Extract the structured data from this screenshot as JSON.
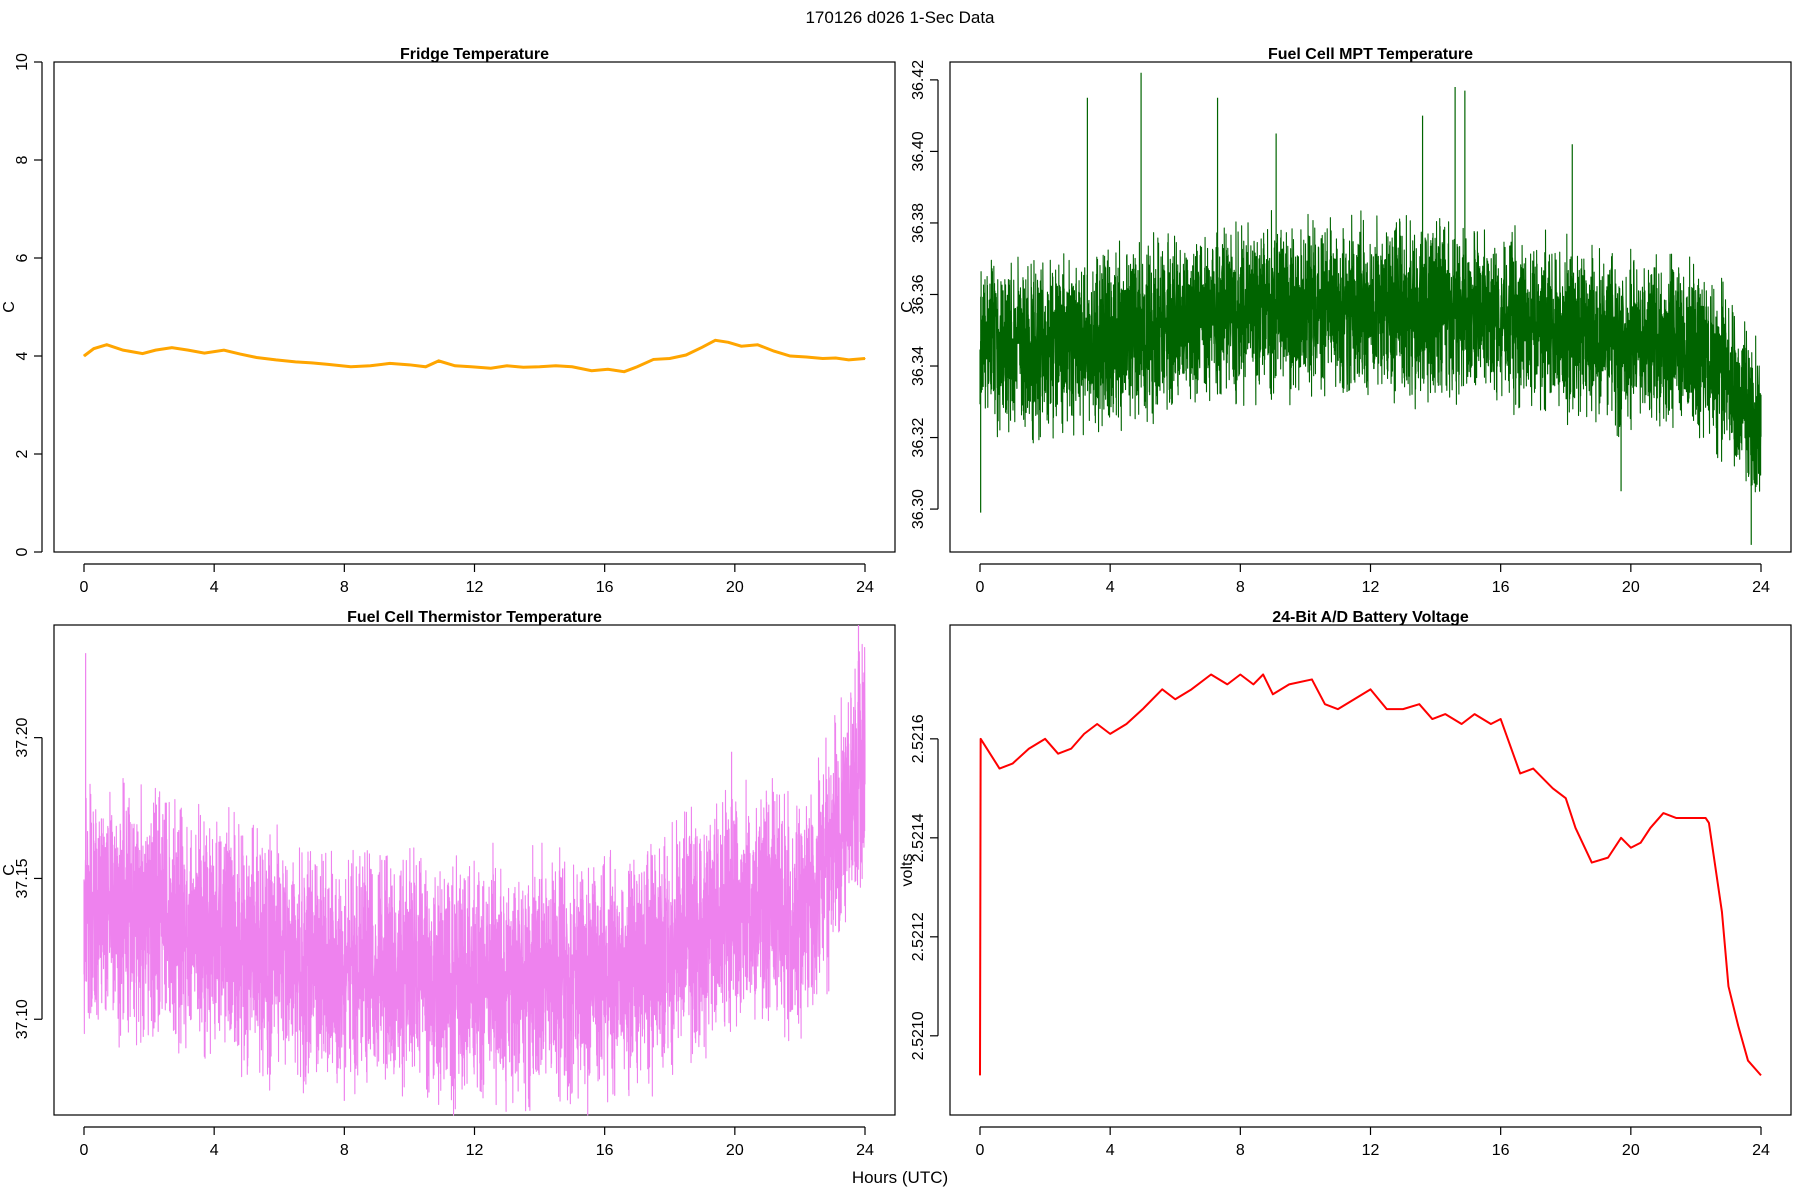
{
  "figure": {
    "header": "170126   d026   1-Sec Data",
    "xlabel": "Hours (UTC)"
  },
  "colors": {
    "fridge": "#FFA500",
    "mpt": "#006400",
    "thermistor": "#EE82EE",
    "battery": "#FF0000"
  },
  "chart_data": [
    {
      "id": "fridge",
      "type": "line",
      "title": "Fridge Temperature",
      "xlabel": "",
      "ylabel": "C",
      "xlim": [
        0,
        24
      ],
      "ylim": [
        0,
        10
      ],
      "xticks": [
        0,
        4,
        8,
        12,
        16,
        20,
        24
      ],
      "yticks": [
        0,
        2,
        4,
        6,
        8,
        10
      ],
      "ytick_labels": [
        "0",
        "2",
        "4",
        "6",
        "8",
        "10"
      ],
      "noise": 0.012,
      "x": [
        0,
        0.3,
        0.7,
        1.2,
        1.8,
        2.2,
        2.7,
        3.2,
        3.7,
        4.3,
        4.8,
        5.3,
        5.9,
        6.5,
        7.0,
        7.5,
        8.2,
        8.8,
        9.4,
        10.0,
        10.5,
        10.9,
        11.4,
        11.9,
        12.5,
        13.0,
        13.5,
        14.0,
        14.5,
        15.0,
        15.6,
        16.1,
        16.6,
        17.0,
        17.5,
        18.0,
        18.5,
        19.0,
        19.4,
        19.8,
        20.2,
        20.7,
        21.2,
        21.7,
        22.2,
        22.7,
        23.1,
        23.5,
        24.0
      ],
      "y": [
        4.0,
        4.15,
        4.23,
        4.12,
        4.05,
        4.12,
        4.17,
        4.12,
        4.06,
        4.12,
        4.04,
        3.97,
        3.92,
        3.88,
        3.86,
        3.83,
        3.78,
        3.8,
        3.85,
        3.82,
        3.78,
        3.9,
        3.8,
        3.78,
        3.75,
        3.8,
        3.77,
        3.78,
        3.8,
        3.78,
        3.7,
        3.73,
        3.68,
        3.78,
        3.93,
        3.95,
        4.02,
        4.18,
        4.32,
        4.28,
        4.2,
        4.23,
        4.1,
        4.0,
        3.98,
        3.95,
        3.96,
        3.92,
        3.95
      ]
    },
    {
      "id": "mpt",
      "type": "line",
      "title": "Fuel Cell MPT Temperature",
      "xlabel": "",
      "ylabel": "C",
      "xlim": [
        0,
        24
      ],
      "ylim": [
        36.288,
        36.425
      ],
      "xticks": [
        0,
        4,
        8,
        12,
        16,
        20,
        24
      ],
      "yticks": [
        36.3,
        36.32,
        36.34,
        36.36,
        36.38,
        36.4,
        36.42
      ],
      "ytick_labels": [
        "36.30",
        "36.32",
        "36.34",
        "36.36",
        "36.38",
        "36.40",
        "36.42"
      ],
      "noise": 0.028,
      "spikes": [
        [
          3.3,
          36.415
        ],
        [
          4.95,
          36.422
        ],
        [
          7.3,
          36.415
        ],
        [
          9.1,
          36.405
        ],
        [
          13.6,
          36.41
        ],
        [
          14.6,
          36.418
        ],
        [
          14.9,
          36.417
        ],
        [
          18.2,
          36.402
        ]
      ],
      "dips": [
        [
          0.02,
          36.299
        ],
        [
          19.7,
          36.305
        ],
        [
          23.7,
          36.29
        ]
      ],
      "x": [
        0,
        1,
        2,
        3,
        4,
        5,
        6,
        7,
        8,
        9,
        10,
        11,
        12,
        13,
        14,
        15,
        16,
        17,
        18,
        19,
        20,
        21,
        22,
        22.5,
        23,
        23.5,
        24
      ],
      "y": [
        36.347,
        36.345,
        36.346,
        36.347,
        36.348,
        36.35,
        36.352,
        36.354,
        36.355,
        36.356,
        36.356,
        36.356,
        36.356,
        36.356,
        36.355,
        36.355,
        36.354,
        36.352,
        36.35,
        36.348,
        36.347,
        36.346,
        36.345,
        36.342,
        36.337,
        36.33,
        36.322
      ]
    },
    {
      "id": "thermistor",
      "type": "line",
      "title": "Fuel Cell Thermistor Temperature",
      "xlabel": "",
      "ylabel": "C",
      "xlim": [
        0,
        24
      ],
      "ylim": [
        37.066,
        37.24
      ],
      "xticks": [
        0,
        4,
        8,
        12,
        16,
        20,
        24
      ],
      "yticks": [
        37.1,
        37.15,
        37.2
      ],
      "ytick_labels": [
        "37.10",
        "37.15",
        "37.20"
      ],
      "noise": 0.05,
      "spikes": [
        [
          0.05,
          37.23
        ],
        [
          19.9,
          37.195
        ],
        [
          22.8,
          37.2
        ],
        [
          23.8,
          37.24
        ]
      ],
      "dips": [
        [
          8.0,
          37.071
        ],
        [
          10.6,
          37.074
        ],
        [
          15.0,
          37.074
        ]
      ],
      "x": [
        0,
        1,
        2,
        3,
        4,
        5,
        6,
        7,
        8,
        9,
        10,
        11,
        12,
        13,
        14,
        15,
        16,
        17,
        18,
        19,
        20,
        21,
        22,
        22.5,
        23,
        23.5,
        24
      ],
      "y": [
        37.14,
        37.138,
        37.135,
        37.133,
        37.13,
        37.126,
        37.122,
        37.119,
        37.117,
        37.116,
        37.115,
        37.115,
        37.114,
        37.114,
        37.114,
        37.114,
        37.115,
        37.118,
        37.124,
        37.132,
        37.14,
        37.14,
        37.137,
        37.142,
        37.162,
        37.18,
        37.194
      ]
    },
    {
      "id": "battery",
      "type": "line",
      "title": "24-Bit A/D Battery Voltage",
      "xlabel": "",
      "ylabel": "volts",
      "xlim": [
        0,
        24
      ],
      "ylim": [
        2.52084,
        2.52183
      ],
      "xticks": [
        0,
        4,
        8,
        12,
        16,
        20,
        24
      ],
      "yticks": [
        2.521,
        2.5212,
        2.5214,
        2.5216
      ],
      "ytick_labels": [
        "2.5210",
        "2.5212",
        "2.5214",
        "2.5216"
      ],
      "noise": 0.0,
      "x": [
        0,
        0.02,
        0.6,
        1.0,
        1.5,
        2.0,
        2.4,
        2.8,
        3.2,
        3.6,
        4.0,
        4.5,
        5.0,
        5.6,
        6.0,
        6.5,
        7.1,
        7.6,
        8.0,
        8.4,
        8.7,
        9.0,
        9.5,
        10.2,
        10.6,
        11.0,
        11.5,
        12.0,
        12.5,
        13.0,
        13.5,
        13.9,
        14.3,
        14.8,
        15.2,
        15.7,
        16.0,
        16.6,
        17.0,
        17.6,
        18.0,
        18.3,
        18.8,
        19.3,
        19.7,
        20.0,
        20.3,
        20.6,
        21.0,
        21.4,
        21.7,
        22.0,
        22.3,
        22.4,
        22.8,
        23.0,
        23.3,
        23.6,
        24.0
      ],
      "y": [
        2.52092,
        2.5216,
        2.52154,
        2.52155,
        2.52158,
        2.5216,
        2.52157,
        2.52158,
        2.52161,
        2.52163,
        2.52161,
        2.52163,
        2.52166,
        2.5217,
        2.52168,
        2.5217,
        2.52173,
        2.52171,
        2.52173,
        2.52171,
        2.52173,
        2.52169,
        2.52171,
        2.52172,
        2.52167,
        2.52166,
        2.52168,
        2.5217,
        2.52166,
        2.52166,
        2.52167,
        2.52164,
        2.52165,
        2.52163,
        2.52165,
        2.52163,
        2.52164,
        2.52153,
        2.52154,
        2.5215,
        2.52148,
        2.52142,
        2.52135,
        2.52136,
        2.5214,
        2.52138,
        2.52139,
        2.52142,
        2.52145,
        2.52144,
        2.52144,
        2.52144,
        2.52144,
        2.52143,
        2.52125,
        2.5211,
        2.52102,
        2.52095,
        2.52092
      ]
    }
  ]
}
